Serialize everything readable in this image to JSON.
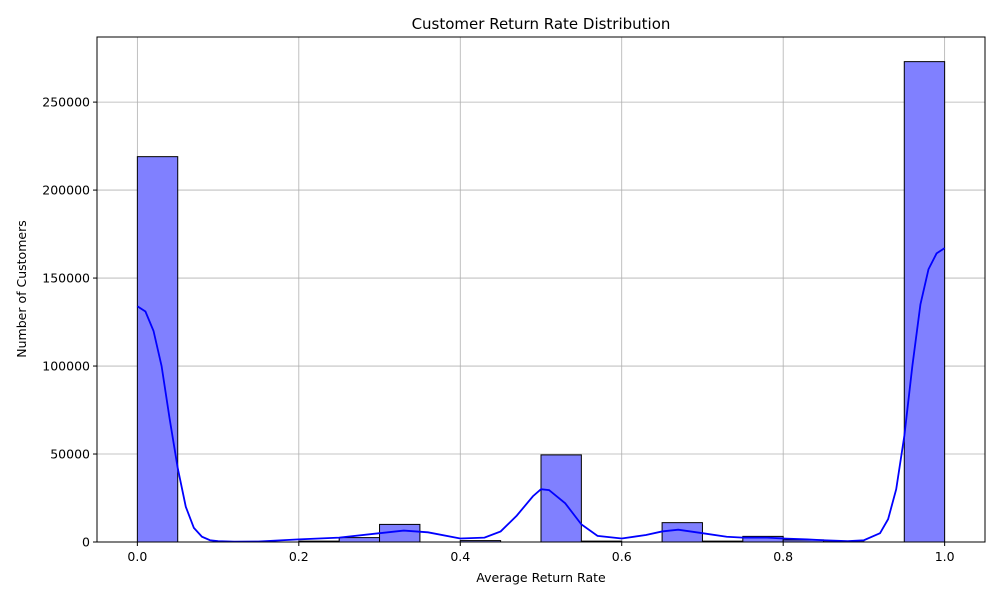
{
  "chart_data": {
    "type": "bar",
    "subtype": "histogram_with_kde",
    "title": "Customer Return Rate Distribution",
    "xlabel": "Average Return Rate",
    "ylabel": "Number of Customers",
    "xlim": [
      -0.05,
      1.05
    ],
    "ylim": [
      0,
      287000
    ],
    "x_ticks": [
      0.0,
      0.2,
      0.4,
      0.6,
      0.8,
      1.0
    ],
    "x_tick_labels": [
      "0.0",
      "0.2",
      "0.4",
      "0.6",
      "0.8",
      "1.0"
    ],
    "y_ticks": [
      0,
      50000,
      100000,
      150000,
      200000,
      250000
    ],
    "y_tick_labels": [
      "0",
      "50000",
      "100000",
      "150000",
      "200000",
      "250000"
    ],
    "grid": true,
    "bar_color": "#8080ff",
    "bar_edge_color": "#000000",
    "kde_color": "#0000ff",
    "bins": [
      {
        "start": 0.0,
        "end": 0.05,
        "count": 219000
      },
      {
        "start": 0.05,
        "end": 0.1,
        "count": 0
      },
      {
        "start": 0.1,
        "end": 0.15,
        "count": 0
      },
      {
        "start": 0.15,
        "end": 0.2,
        "count": 0
      },
      {
        "start": 0.2,
        "end": 0.25,
        "count": 500
      },
      {
        "start": 0.25,
        "end": 0.3,
        "count": 2500
      },
      {
        "start": 0.3,
        "end": 0.35,
        "count": 10000
      },
      {
        "start": 0.35,
        "end": 0.4,
        "count": 0
      },
      {
        "start": 0.4,
        "end": 0.45,
        "count": 800
      },
      {
        "start": 0.45,
        "end": 0.5,
        "count": 0
      },
      {
        "start": 0.5,
        "end": 0.55,
        "count": 49500
      },
      {
        "start": 0.55,
        "end": 0.6,
        "count": 500
      },
      {
        "start": 0.6,
        "end": 0.65,
        "count": 0
      },
      {
        "start": 0.65,
        "end": 0.7,
        "count": 11000
      },
      {
        "start": 0.7,
        "end": 0.75,
        "count": 500
      },
      {
        "start": 0.75,
        "end": 0.8,
        "count": 3200
      },
      {
        "start": 0.8,
        "end": 0.85,
        "count": 1200
      },
      {
        "start": 0.85,
        "end": 0.9,
        "count": 200
      },
      {
        "start": 0.9,
        "end": 0.95,
        "count": 0
      },
      {
        "start": 0.95,
        "end": 1.0,
        "count": 273000
      }
    ],
    "kde": {
      "x": [
        0.0,
        0.01,
        0.02,
        0.03,
        0.04,
        0.05,
        0.06,
        0.07,
        0.08,
        0.09,
        0.1,
        0.12,
        0.15,
        0.2,
        0.25,
        0.3,
        0.33,
        0.36,
        0.4,
        0.43,
        0.45,
        0.47,
        0.49,
        0.5,
        0.51,
        0.53,
        0.55,
        0.57,
        0.6,
        0.63,
        0.65,
        0.67,
        0.7,
        0.73,
        0.75,
        0.78,
        0.8,
        0.83,
        0.85,
        0.88,
        0.9,
        0.92,
        0.93,
        0.94,
        0.95,
        0.96,
        0.97,
        0.98,
        0.99,
        1.0
      ],
      "y": [
        134000,
        131000,
        120000,
        100000,
        70000,
        42000,
        20000,
        8000,
        3000,
        1000,
        500,
        200,
        300,
        1500,
        2500,
        5000,
        6500,
        5500,
        2000,
        2500,
        6000,
        15000,
        26000,
        30000,
        29500,
        22000,
        10000,
        3500,
        2000,
        4000,
        6000,
        7000,
        5000,
        3000,
        2500,
        2500,
        2000,
        1500,
        1000,
        500,
        1000,
        5000,
        13000,
        30000,
        60000,
        100000,
        135000,
        155000,
        164000,
        167000
      ]
    }
  }
}
